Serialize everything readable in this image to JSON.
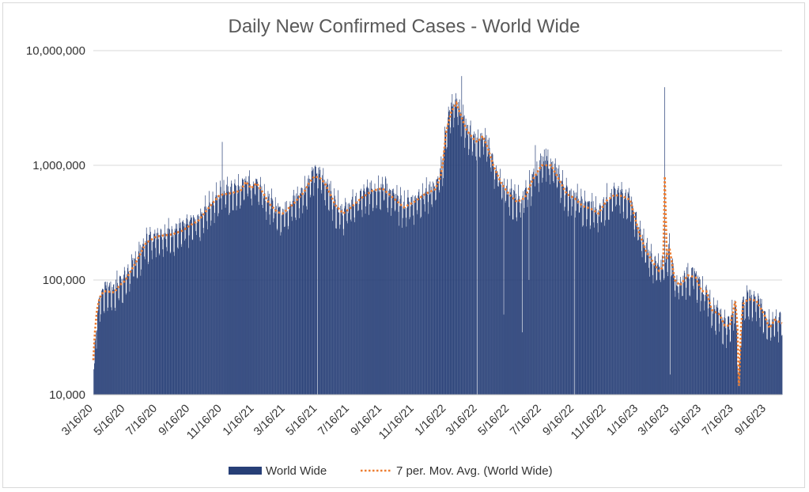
{
  "chart_data": {
    "type": "bar",
    "title": "Daily New Confirmed Cases - World Wide",
    "xlabel": "",
    "ylabel": "",
    "yscale": "log",
    "ylim": [
      10000,
      10000000
    ],
    "yticks": [
      {
        "value": 10000000,
        "label": "10,000,000"
      },
      {
        "value": 1000000,
        "label": "1,000,000"
      },
      {
        "value": 100000,
        "label": "100,000"
      },
      {
        "value": 10000,
        "label": "10,000"
      }
    ],
    "x_start": "3/16/20",
    "x_end": "10/15/23",
    "xticks": [
      "3/16/20",
      "5/16/20",
      "7/16/20",
      "9/16/20",
      "11/16/20",
      "1/16/21",
      "3/16/21",
      "5/16/21",
      "7/16/21",
      "9/16/21",
      "11/16/21",
      "1/16/22",
      "3/16/22",
      "5/16/22",
      "7/16/22",
      "9/16/22",
      "11/16/22",
      "1/16/23",
      "3/16/23",
      "5/16/23",
      "7/16/23",
      "9/16/23"
    ],
    "xtick_days": [
      0,
      61,
      122,
      184,
      245,
      306,
      365,
      426,
      487,
      549,
      610,
      671,
      730,
      791,
      852,
      914,
      975,
      1036,
      1095,
      1156,
      1217,
      1279
    ],
    "bar_color": "#273f77",
    "avg_color": "#ed7d31",
    "grid": true,
    "legend": {
      "position": "bottom",
      "entries": [
        "World Wide",
        "7 per. Mov. Avg. (World Wide)"
      ]
    },
    "series": [
      {
        "name": "World Wide",
        "kind": "bar",
        "anchors": [
          [
            0,
            12000
          ],
          [
            3,
            25000
          ],
          [
            7,
            45000
          ],
          [
            12,
            65000
          ],
          [
            20,
            80000
          ],
          [
            40,
            80000
          ],
          [
            50,
            95000
          ],
          [
            60,
            100000
          ],
          [
            80,
            140000
          ],
          [
            100,
            210000
          ],
          [
            120,
            240000
          ],
          [
            150,
            250000
          ],
          [
            170,
            270000
          ],
          [
            184,
            300000
          ],
          [
            200,
            330000
          ],
          [
            220,
            430000
          ],
          [
            240,
            550000
          ],
          [
            260,
            570000
          ],
          [
            280,
            600000
          ],
          [
            290,
            720000
          ],
          [
            300,
            630000
          ],
          [
            310,
            700000
          ],
          [
            320,
            600000
          ],
          [
            335,
            460000
          ],
          [
            350,
            390000
          ],
          [
            360,
            380000
          ],
          [
            380,
            460000
          ],
          [
            400,
            580000
          ],
          [
            410,
            700000
          ],
          [
            420,
            850000
          ],
          [
            430,
            800000
          ],
          [
            440,
            700000
          ],
          [
            460,
            450000
          ],
          [
            475,
            380000
          ],
          [
            487,
            420000
          ],
          [
            510,
            520000
          ],
          [
            530,
            600000
          ],
          [
            549,
            630000
          ],
          [
            570,
            520000
          ],
          [
            590,
            430000
          ],
          [
            610,
            480000
          ],
          [
            630,
            560000
          ],
          [
            650,
            620000
          ],
          [
            660,
            800000
          ],
          [
            665,
            1100000
          ],
          [
            670,
            2000000
          ],
          [
            680,
            3000000
          ],
          [
            690,
            3400000
          ],
          [
            700,
            2600000
          ],
          [
            710,
            2000000
          ],
          [
            725,
            1650000
          ],
          [
            730,
            1600000
          ],
          [
            740,
            1800000
          ],
          [
            750,
            1400000
          ],
          [
            760,
            1000000
          ],
          [
            775,
            700000
          ],
          [
            790,
            560000
          ],
          [
            805,
            480000
          ],
          [
            820,
            520000
          ],
          [
            835,
            750000
          ],
          [
            852,
            1000000
          ],
          [
            870,
            1000000
          ],
          [
            885,
            750000
          ],
          [
            900,
            560000
          ],
          [
            914,
            520000
          ],
          [
            930,
            440000
          ],
          [
            945,
            420000
          ],
          [
            960,
            380000
          ],
          [
            975,
            490000
          ],
          [
            990,
            550000
          ],
          [
            1005,
            540000
          ],
          [
            1020,
            500000
          ],
          [
            1036,
            270000
          ],
          [
            1050,
            180000
          ],
          [
            1065,
            140000
          ],
          [
            1075,
            120000
          ],
          [
            1085,
            130000
          ],
          [
            1095,
            190000
          ],
          [
            1105,
            100000
          ],
          [
            1115,
            90000
          ],
          [
            1130,
            110000
          ],
          [
            1145,
            105000
          ],
          [
            1156,
            80000
          ],
          [
            1165,
            80000
          ],
          [
            1175,
            55000
          ],
          [
            1190,
            50000
          ],
          [
            1200,
            40000
          ],
          [
            1210,
            40000
          ],
          [
            1220,
            65000
          ],
          [
            1227,
            12000
          ],
          [
            1233,
            60000
          ],
          [
            1245,
            68000
          ],
          [
            1260,
            66000
          ],
          [
            1275,
            50000
          ],
          [
            1285,
            38000
          ],
          [
            1295,
            45000
          ],
          [
            1309,
            42000
          ]
        ],
        "spikes": [
          [
            245,
            1600000
          ],
          [
            700,
            6000000
          ],
          [
            1086,
            4800000
          ],
          [
            840,
            1500000
          ],
          [
            860,
            1400000
          ],
          [
            555,
            800000
          ]
        ],
        "dips": [
          [
            426,
            10000
          ],
          [
            730,
            10000
          ],
          [
            780,
            50000
          ],
          [
            815,
            35000
          ],
          [
            828,
            100000
          ],
          [
            914,
            10000
          ],
          [
            1096,
            15000
          ]
        ]
      },
      {
        "name": "7 per. Mov. Avg. (World Wide)",
        "kind": "line",
        "anchors": [
          [
            0,
            20000
          ],
          [
            3,
            35000
          ],
          [
            7,
            55000
          ],
          [
            12,
            70000
          ],
          [
            20,
            80000
          ],
          [
            40,
            78000
          ],
          [
            50,
            90000
          ],
          [
            60,
            98000
          ],
          [
            80,
            140000
          ],
          [
            100,
            210000
          ],
          [
            120,
            240000
          ],
          [
            150,
            250000
          ],
          [
            170,
            270000
          ],
          [
            184,
            300000
          ],
          [
            200,
            330000
          ],
          [
            220,
            430000
          ],
          [
            240,
            550000
          ],
          [
            260,
            570000
          ],
          [
            280,
            600000
          ],
          [
            290,
            720000
          ],
          [
            300,
            630000
          ],
          [
            310,
            700000
          ],
          [
            320,
            600000
          ],
          [
            335,
            460000
          ],
          [
            350,
            390000
          ],
          [
            360,
            380000
          ],
          [
            380,
            460000
          ],
          [
            400,
            580000
          ],
          [
            410,
            700000
          ],
          [
            420,
            800000
          ],
          [
            430,
            780000
          ],
          [
            440,
            700000
          ],
          [
            460,
            450000
          ],
          [
            475,
            380000
          ],
          [
            487,
            420000
          ],
          [
            510,
            520000
          ],
          [
            530,
            600000
          ],
          [
            549,
            630000
          ],
          [
            570,
            520000
          ],
          [
            590,
            430000
          ],
          [
            610,
            480000
          ],
          [
            630,
            560000
          ],
          [
            650,
            620000
          ],
          [
            660,
            800000
          ],
          [
            665,
            1100000
          ],
          [
            670,
            1900000
          ],
          [
            680,
            2900000
          ],
          [
            690,
            3500000
          ],
          [
            700,
            2600000
          ],
          [
            710,
            2000000
          ],
          [
            725,
            1650000
          ],
          [
            730,
            1600000
          ],
          [
            740,
            1800000
          ],
          [
            750,
            1400000
          ],
          [
            760,
            1000000
          ],
          [
            775,
            700000
          ],
          [
            790,
            560000
          ],
          [
            805,
            480000
          ],
          [
            820,
            520000
          ],
          [
            835,
            750000
          ],
          [
            852,
            1000000
          ],
          [
            870,
            1000000
          ],
          [
            885,
            750000
          ],
          [
            900,
            560000
          ],
          [
            914,
            520000
          ],
          [
            930,
            440000
          ],
          [
            945,
            420000
          ],
          [
            960,
            380000
          ],
          [
            975,
            490000
          ],
          [
            990,
            550000
          ],
          [
            1005,
            540000
          ],
          [
            1020,
            500000
          ],
          [
            1036,
            270000
          ],
          [
            1050,
            180000
          ],
          [
            1065,
            140000
          ],
          [
            1075,
            120000
          ],
          [
            1083,
            130000
          ],
          [
            1086,
            800000
          ],
          [
            1090,
            150000
          ],
          [
            1095,
            190000
          ],
          [
            1105,
            100000
          ],
          [
            1115,
            90000
          ],
          [
            1130,
            110000
          ],
          [
            1145,
            105000
          ],
          [
            1156,
            80000
          ],
          [
            1165,
            80000
          ],
          [
            1175,
            55000
          ],
          [
            1190,
            50000
          ],
          [
            1200,
            40000
          ],
          [
            1210,
            40000
          ],
          [
            1220,
            65000
          ],
          [
            1224,
            40000
          ],
          [
            1227,
            12000
          ],
          [
            1231,
            40000
          ],
          [
            1235,
            62000
          ],
          [
            1245,
            68000
          ],
          [
            1260,
            66000
          ],
          [
            1275,
            50000
          ],
          [
            1285,
            38000
          ],
          [
            1295,
            45000
          ],
          [
            1309,
            42000
          ]
        ]
      }
    ]
  }
}
